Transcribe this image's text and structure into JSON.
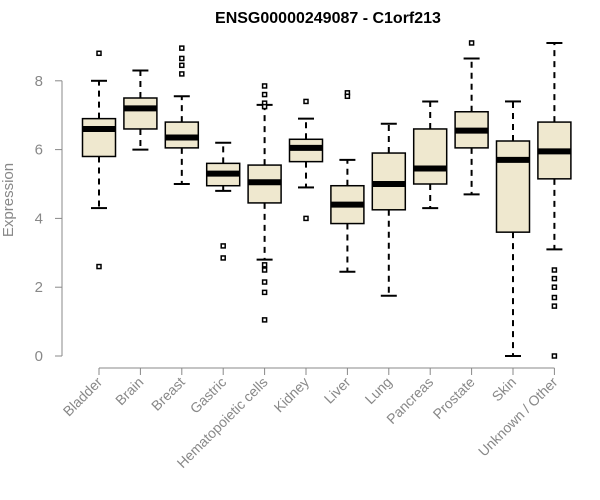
{
  "chart_data": {
    "type": "box",
    "title": "ENSG00000249087 - C1orf213",
    "xlabel": "",
    "ylabel": "Expression",
    "ylim": [
      0,
      9.2
    ],
    "yticks": [
      0,
      2,
      4,
      6,
      8
    ],
    "grid": false,
    "box_fill": "#efe8cf",
    "box_stroke": "#000000",
    "median_color": "#000000",
    "categories": [
      "Bladder",
      "Brain",
      "Breast",
      "Gastric",
      "Hematopoietic cells",
      "Kidney",
      "Liver",
      "Lung",
      "Pancreas",
      "Prostate",
      "Skin",
      "Unknown / Other"
    ],
    "boxes": [
      {
        "category": "Bladder",
        "whisker_low": 4.3,
        "q1": 5.8,
        "median": 6.6,
        "q3": 6.9,
        "whisker_high": 8.0,
        "outliers": [
          8.8,
          2.6
        ]
      },
      {
        "category": "Brain",
        "whisker_low": 6.0,
        "q1": 6.6,
        "median": 7.2,
        "q3": 7.5,
        "whisker_high": 8.3,
        "outliers": []
      },
      {
        "category": "Breast",
        "whisker_low": 5.0,
        "q1": 6.05,
        "median": 6.35,
        "q3": 6.8,
        "whisker_high": 7.55,
        "outliers": [
          8.95,
          8.65,
          8.45,
          8.2
        ]
      },
      {
        "category": "Gastric",
        "whisker_low": 4.8,
        "q1": 4.95,
        "median": 5.3,
        "q3": 5.6,
        "whisker_high": 6.2,
        "outliers": [
          3.2,
          2.85
        ]
      },
      {
        "category": "Hematopoietic cells",
        "whisker_low": 2.8,
        "q1": 4.45,
        "median": 5.05,
        "q3": 5.55,
        "whisker_high": 7.3,
        "outliers": [
          7.85,
          7.6,
          7.35,
          7.25,
          2.65,
          2.5,
          2.15,
          1.85,
          1.05
        ]
      },
      {
        "category": "Kidney",
        "whisker_low": 4.9,
        "q1": 5.65,
        "median": 6.05,
        "q3": 6.3,
        "whisker_high": 6.9,
        "outliers": [
          7.4,
          4.0
        ]
      },
      {
        "category": "Liver",
        "whisker_low": 2.45,
        "q1": 3.85,
        "median": 4.4,
        "q3": 4.95,
        "whisker_high": 5.7,
        "outliers": [
          7.65,
          7.55
        ]
      },
      {
        "category": "Lung",
        "whisker_low": 1.75,
        "q1": 4.25,
        "median": 5.0,
        "q3": 5.9,
        "whisker_high": 6.75,
        "outliers": []
      },
      {
        "category": "Pancreas",
        "whisker_low": 4.3,
        "q1": 5.0,
        "median": 5.45,
        "q3": 6.6,
        "whisker_high": 7.4,
        "outliers": []
      },
      {
        "category": "Prostate",
        "whisker_low": 4.7,
        "q1": 6.05,
        "median": 6.55,
        "q3": 7.1,
        "whisker_high": 8.65,
        "outliers": [
          9.1
        ]
      },
      {
        "category": "Skin",
        "whisker_low": 0.0,
        "q1": 3.6,
        "median": 5.7,
        "q3": 6.25,
        "whisker_high": 7.4,
        "outliers": []
      },
      {
        "category": "Unknown / Other",
        "whisker_low": 3.1,
        "q1": 5.15,
        "median": 5.95,
        "q3": 6.8,
        "whisker_high": 9.1,
        "outliers": [
          2.5,
          2.25,
          2.0,
          1.7,
          1.45,
          0.0
        ]
      }
    ]
  }
}
